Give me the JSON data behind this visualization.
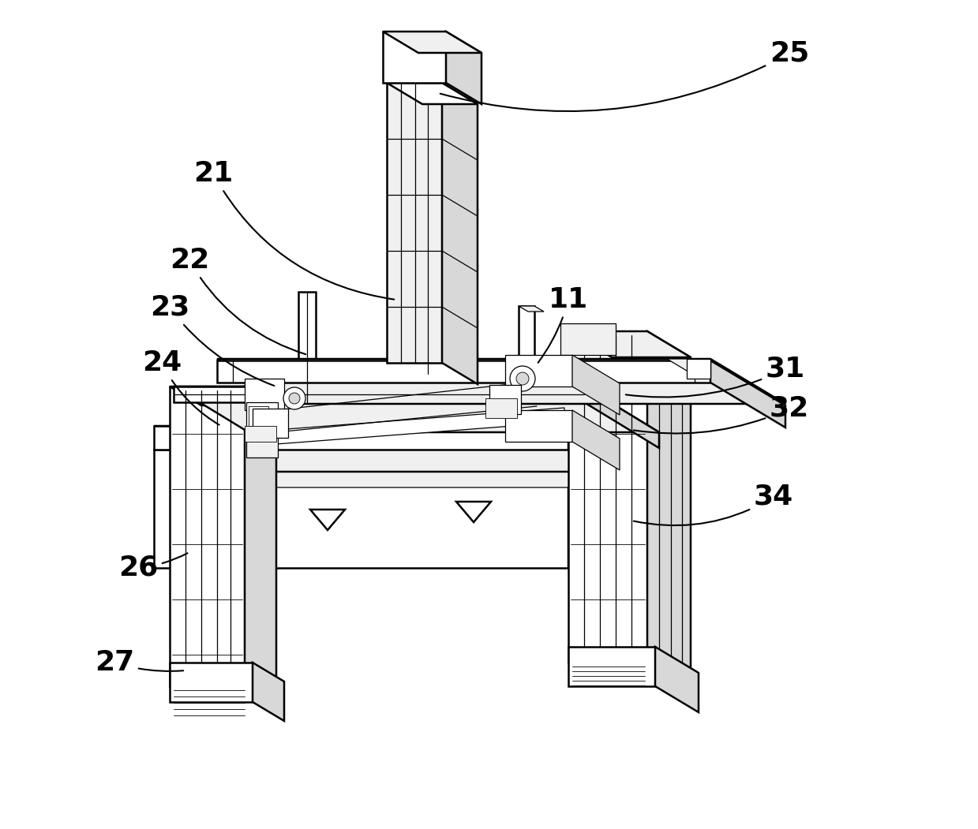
{
  "background_color": "#ffffff",
  "line_color": "#000000",
  "lw_main": 1.8,
  "lw_thin": 0.9,
  "lw_detail": 0.6,
  "label_fontsize": 26,
  "figsize": [
    12.39,
    10.51
  ],
  "dpi": 100,
  "col_white": "#ffffff",
  "col_light": "#f0f0f0",
  "col_mid": "#d8d8d8",
  "col_dark": "#b0b0b0",
  "col_darker": "#888888",
  "col_black": "#202020"
}
